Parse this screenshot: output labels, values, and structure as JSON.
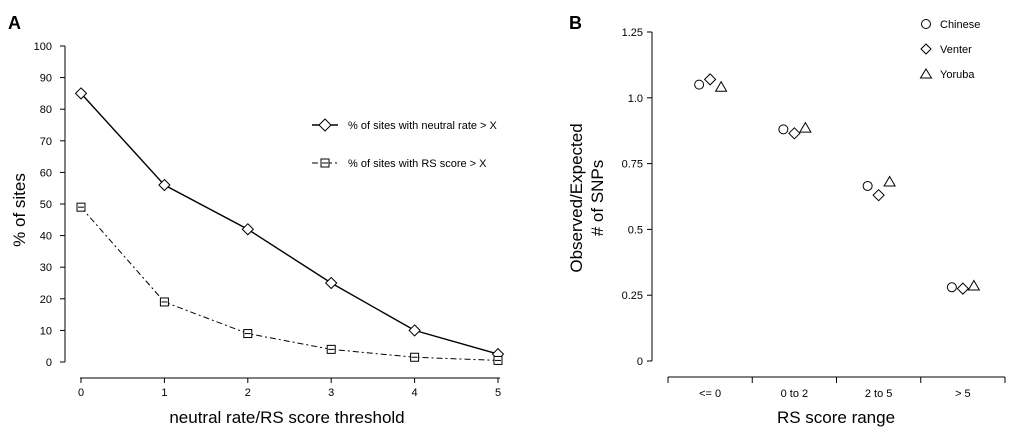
{
  "chart_data": [
    {
      "type": "line",
      "panel_label": "A",
      "xlabel": "neutral rate/RS score threshold",
      "ylabel": "% of sites",
      "x": [
        0,
        1,
        2,
        3,
        4,
        5
      ],
      "xlim": [
        0,
        5
      ],
      "ylim": [
        0,
        100
      ],
      "x_ticks": [
        0,
        1,
        2,
        3,
        4,
        5
      ],
      "y_ticks": [
        0,
        10,
        20,
        30,
        40,
        50,
        60,
        70,
        80,
        90,
        100
      ],
      "grid": false,
      "legend_position": "right",
      "series": [
        {
          "name": "% of sites with neutral rate > X",
          "marker": "diamond",
          "line": "solid",
          "values": [
            85,
            56,
            42,
            25,
            10,
            2.5
          ]
        },
        {
          "name": "% of sites with RS score > X",
          "marker": "square",
          "line": "dashdot",
          "values": [
            49,
            19,
            9,
            4,
            1.5,
            0.5
          ]
        }
      ]
    },
    {
      "type": "scatter",
      "panel_label": "B",
      "xlabel": "RS score range",
      "ylabel_lines": [
        "Observed/Expected",
        "# of SNPs"
      ],
      "categories": [
        "<= 0",
        "0 to 2",
        "2 to 5",
        "> 5"
      ],
      "ylim": [
        0,
        1.25
      ],
      "y_ticks": [
        "0",
        "0.25",
        "0.5",
        "0.75",
        "1.0",
        "1.25"
      ],
      "grid": false,
      "legend_position": "top-right",
      "series": [
        {
          "name": "Chinese",
          "marker": "circle",
          "values": [
            1.05,
            0.88,
            0.665,
            0.28
          ]
        },
        {
          "name": "Venter",
          "marker": "diamond",
          "values": [
            1.07,
            0.865,
            0.63,
            0.275
          ]
        },
        {
          "name": "Yoruba",
          "marker": "triangle",
          "values": [
            1.04,
            0.885,
            0.68,
            0.285
          ]
        }
      ]
    }
  ]
}
